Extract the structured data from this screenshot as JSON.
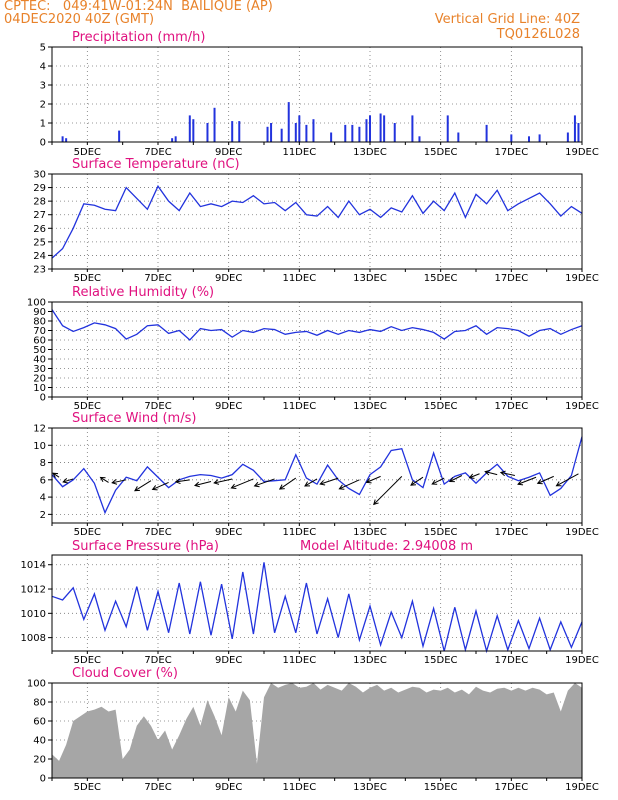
{
  "header": {
    "line1_left": "CPTEC:   049:41W-01:24N  BAILIQUE (AP)",
    "line2_left": "04DEC2020 40Z (GMT)",
    "line1_right": "Vertical Grid Line: 40Z",
    "line2_right": "TQ0126L028"
  },
  "colors": {
    "header": "#e8822a",
    "title": "#e0117f",
    "series": "#2233dd",
    "cloud": "#a6a6a6",
    "wind_arrow": "#000000"
  },
  "x_axis": {
    "start": "04DEC",
    "end": "19DEC",
    "tick_labels": [
      "5DEC",
      "7DEC",
      "9DEC",
      "11DEC",
      "13DEC",
      "15DEC",
      "17DEC",
      "19DEC"
    ],
    "tick_days": [
      5,
      7,
      9,
      11,
      13,
      15,
      17,
      19
    ],
    "range_days": [
      4.0,
      19.0
    ]
  },
  "chart_data": [
    {
      "type": "bar",
      "title": "Precipitation (mm/h)",
      "ylim": [
        0,
        5
      ],
      "yticks": [
        0,
        1,
        2,
        3,
        4,
        5
      ],
      "grid": true,
      "x": [
        4.3,
        4.4,
        5.9,
        7.4,
        7.5,
        7.9,
        8.0,
        8.4,
        8.6,
        9.1,
        9.3,
        10.1,
        10.2,
        10.5,
        10.7,
        10.9,
        11.0,
        11.2,
        11.4,
        11.9,
        12.3,
        12.5,
        12.7,
        12.9,
        13.0,
        13.3,
        13.4,
        13.7,
        14.2,
        14.4,
        15.2,
        15.5,
        16.3,
        17.0,
        17.5,
        17.8,
        18.6,
        18.8,
        18.9
      ],
      "values": [
        0.3,
        0.2,
        0.6,
        0.2,
        0.3,
        1.4,
        1.2,
        1.0,
        1.8,
        1.1,
        1.1,
        0.8,
        1.0,
        0.7,
        2.1,
        1.0,
        1.4,
        0.9,
        1.2,
        0.5,
        0.9,
        0.9,
        0.8,
        1.2,
        1.4,
        1.5,
        1.4,
        1.0,
        1.4,
        0.3,
        1.4,
        0.5,
        0.9,
        0.4,
        0.3,
        0.4,
        0.5,
        1.4,
        1.0
      ]
    },
    {
      "type": "line",
      "title": "Surface Temperature (nC)",
      "ylim": [
        23,
        30
      ],
      "yticks": [
        23,
        24,
        25,
        26,
        27,
        28,
        29,
        30
      ],
      "grid": true,
      "x": [
        4.0,
        4.3,
        4.6,
        4.9,
        5.2,
        5.5,
        5.8,
        6.1,
        6.4,
        6.7,
        7.0,
        7.3,
        7.6,
        7.9,
        8.2,
        8.5,
        8.8,
        9.1,
        9.4,
        9.7,
        10.0,
        10.3,
        10.6,
        10.9,
        11.2,
        11.5,
        11.8,
        12.1,
        12.4,
        12.7,
        13.0,
        13.3,
        13.6,
        13.9,
        14.2,
        14.5,
        14.8,
        15.1,
        15.4,
        15.7,
        16.0,
        16.3,
        16.6,
        16.9,
        17.2,
        17.5,
        17.8,
        18.1,
        18.4,
        18.7,
        19.0
      ],
      "values": [
        23.8,
        24.5,
        26.0,
        27.8,
        27.7,
        27.4,
        27.3,
        29.0,
        28.2,
        27.4,
        29.1,
        28.0,
        27.3,
        28.6,
        27.6,
        27.8,
        27.6,
        28.0,
        27.9,
        28.4,
        27.8,
        27.9,
        27.3,
        27.9,
        27.0,
        26.9,
        27.6,
        26.8,
        28.0,
        27.0,
        27.4,
        26.8,
        27.5,
        27.2,
        28.4,
        27.1,
        28.0,
        27.3,
        28.6,
        26.8,
        28.5,
        27.8,
        28.8,
        27.3,
        27.8,
        28.2,
        28.6,
        27.8,
        26.9,
        27.6,
        27.1
      ]
    },
    {
      "type": "line",
      "title": "Relative Humidity (%)",
      "ylim": [
        0,
        100
      ],
      "yticks": [
        0,
        10,
        20,
        30,
        40,
        50,
        60,
        70,
        80,
        90,
        100
      ],
      "grid": true,
      "x": [
        4.0,
        4.3,
        4.6,
        4.9,
        5.2,
        5.5,
        5.8,
        6.1,
        6.4,
        6.7,
        7.0,
        7.3,
        7.6,
        7.9,
        8.2,
        8.5,
        8.8,
        9.1,
        9.4,
        9.7,
        10.0,
        10.3,
        10.6,
        10.9,
        11.2,
        11.5,
        11.8,
        12.1,
        12.4,
        12.7,
        13.0,
        13.3,
        13.6,
        13.9,
        14.2,
        14.5,
        14.8,
        15.1,
        15.4,
        15.7,
        16.0,
        16.3,
        16.6,
        16.9,
        17.2,
        17.5,
        17.8,
        18.1,
        18.4,
        18.7,
        19.0
      ],
      "values": [
        92,
        75,
        69,
        73,
        78,
        76,
        72,
        61,
        66,
        75,
        76,
        67,
        70,
        60,
        72,
        70,
        71,
        63,
        70,
        68,
        72,
        71,
        66,
        68,
        69,
        65,
        70,
        66,
        70,
        68,
        71,
        69,
        74,
        70,
        73,
        71,
        68,
        61,
        69,
        70,
        75,
        66,
        73,
        72,
        70,
        64,
        70,
        72,
        66,
        71,
        75
      ]
    },
    {
      "type": "line",
      "title": "Surface Wind (m/s)",
      "ylim": [
        1,
        12
      ],
      "yticks": [
        2,
        4,
        6,
        8,
        10,
        12
      ],
      "grid": true,
      "x": [
        4.0,
        4.3,
        4.6,
        4.9,
        5.2,
        5.5,
        5.8,
        6.1,
        6.4,
        6.7,
        7.0,
        7.3,
        7.6,
        7.9,
        8.2,
        8.5,
        8.8,
        9.1,
        9.4,
        9.7,
        10.0,
        10.3,
        10.6,
        10.9,
        11.2,
        11.5,
        11.8,
        12.1,
        12.4,
        12.7,
        13.0,
        13.3,
        13.6,
        13.9,
        14.2,
        14.5,
        14.8,
        15.1,
        15.4,
        15.7,
        16.0,
        16.3,
        16.6,
        16.9,
        17.2,
        17.5,
        17.8,
        18.1,
        18.4,
        18.7,
        19.0
      ],
      "values": [
        6.6,
        5.2,
        6.0,
        7.3,
        5.6,
        2.2,
        4.8,
        6.3,
        5.9,
        7.5,
        6.3,
        5.1,
        6.0,
        6.4,
        6.6,
        6.5,
        6.2,
        6.6,
        7.8,
        7.1,
        5.8,
        5.9,
        6.0,
        8.9,
        6.2,
        5.5,
        7.7,
        6.0,
        5.0,
        4.3,
        6.6,
        7.5,
        9.4,
        9.6,
        6.0,
        5.1,
        9.1,
        5.5,
        6.4,
        6.8,
        5.6,
        6.8,
        7.8,
        6.4,
        5.9,
        6.3,
        6.8,
        4.2,
        5.0,
        6.5,
        11.0
      ],
      "arrows": [
        {
          "x": 4.2,
          "y": 6.3,
          "dx": -6,
          "dy": -4
        },
        {
          "x": 4.6,
          "y": 6.1,
          "dx": -10,
          "dy": 3
        },
        {
          "x": 5.6,
          "y": 5.7,
          "dx": -8,
          "dy": -5
        },
        {
          "x": 6.1,
          "y": 6.0,
          "dx": -14,
          "dy": 3
        },
        {
          "x": 6.8,
          "y": 5.9,
          "dx": -16,
          "dy": 10
        },
        {
          "x": 7.3,
          "y": 5.7,
          "dx": -16,
          "dy": 7
        },
        {
          "x": 7.9,
          "y": 6.0,
          "dx": -14,
          "dy": 2
        },
        {
          "x": 8.5,
          "y": 5.8,
          "dx": -16,
          "dy": 4
        },
        {
          "x": 9.1,
          "y": 6.1,
          "dx": -18,
          "dy": 4
        },
        {
          "x": 9.7,
          "y": 6.1,
          "dx": -22,
          "dy": 9
        },
        {
          "x": 10.3,
          "y": 6.1,
          "dx": -20,
          "dy": 7
        },
        {
          "x": 10.9,
          "y": 6.2,
          "dx": -16,
          "dy": 11
        },
        {
          "x": 11.5,
          "y": 6.1,
          "dx": -12,
          "dy": 7
        },
        {
          "x": 12.1,
          "y": 6.2,
          "dx": -18,
          "dy": 6
        },
        {
          "x": 12.7,
          "y": 6.0,
          "dx": -20,
          "dy": 9
        },
        {
          "x": 13.3,
          "y": 6.4,
          "dx": -14,
          "dy": 6
        },
        {
          "x": 13.9,
          "y": 6.4,
          "dx": -28,
          "dy": 28
        },
        {
          "x": 14.5,
          "y": 6.3,
          "dx": -12,
          "dy": 8
        },
        {
          "x": 15.1,
          "y": 6.2,
          "dx": -12,
          "dy": 6
        },
        {
          "x": 15.6,
          "y": 6.5,
          "dx": -12,
          "dy": 6
        },
        {
          "x": 16.1,
          "y": 6.7,
          "dx": -10,
          "dy": 4
        },
        {
          "x": 16.6,
          "y": 6.6,
          "dx": -12,
          "dy": -3
        },
        {
          "x": 17.1,
          "y": 6.5,
          "dx": -14,
          "dy": -3
        },
        {
          "x": 17.7,
          "y": 6.3,
          "dx": -18,
          "dy": 7
        },
        {
          "x": 18.2,
          "y": 6.4,
          "dx": -16,
          "dy": 7
        },
        {
          "x": 18.9,
          "y": 6.7,
          "dx": -22,
          "dy": 12
        }
      ]
    },
    {
      "type": "line",
      "title": "Surface Pressure (hPa)",
      "annotation": "Model Altitude: 2.94008 m",
      "ylim": [
        1006.9,
        1014.8
      ],
      "yticks": [
        1008,
        1010,
        1012,
        1014
      ],
      "grid": true,
      "x": [
        4.0,
        4.3,
        4.6,
        4.9,
        5.2,
        5.5,
        5.8,
        6.1,
        6.4,
        6.7,
        7.0,
        7.3,
        7.6,
        7.9,
        8.2,
        8.5,
        8.8,
        9.1,
        9.4,
        9.7,
        10.0,
        10.3,
        10.6,
        10.9,
        11.2,
        11.5,
        11.8,
        12.1,
        12.4,
        12.7,
        13.0,
        13.3,
        13.6,
        13.9,
        14.2,
        14.5,
        14.8,
        15.1,
        15.4,
        15.7,
        16.0,
        16.3,
        16.6,
        16.9,
        17.2,
        17.5,
        17.8,
        18.1,
        18.4,
        18.7,
        19.0
      ],
      "values": [
        1011.4,
        1011.1,
        1012.1,
        1009.5,
        1011.6,
        1008.6,
        1011.0,
        1008.9,
        1012.2,
        1008.6,
        1011.8,
        1008.4,
        1012.5,
        1008.3,
        1012.6,
        1008.2,
        1012.4,
        1007.9,
        1013.4,
        1008.3,
        1014.2,
        1008.4,
        1011.4,
        1008.4,
        1012.5,
        1008.3,
        1011.2,
        1008.0,
        1011.6,
        1007.8,
        1010.6,
        1007.4,
        1010.1,
        1008.0,
        1011.0,
        1007.3,
        1010.4,
        1006.9,
        1010.5,
        1007.0,
        1010.2,
        1006.9,
        1009.8,
        1007.0,
        1009.4,
        1007.1,
        1009.6,
        1007.0,
        1009.3,
        1007.2,
        1009.3
      ]
    },
    {
      "type": "area",
      "title": "Cloud Cover (%)",
      "ylim": [
        0,
        100
      ],
      "yticks": [
        0,
        20,
        40,
        60,
        80,
        100
      ],
      "grid": true,
      "x": [
        4.0,
        4.2,
        4.4,
        4.6,
        4.8,
        5.0,
        5.2,
        5.4,
        5.6,
        5.8,
        6.0,
        6.2,
        6.4,
        6.6,
        6.8,
        7.0,
        7.2,
        7.4,
        7.6,
        7.8,
        8.0,
        8.2,
        8.4,
        8.6,
        8.8,
        9.0,
        9.2,
        9.4,
        9.6,
        9.8,
        10.0,
        10.2,
        10.4,
        10.6,
        10.8,
        11.0,
        11.2,
        11.4,
        11.6,
        11.8,
        12.0,
        12.2,
        12.4,
        12.6,
        12.8,
        13.0,
        13.2,
        13.4,
        13.6,
        13.8,
        14.0,
        14.2,
        14.4,
        14.6,
        14.8,
        15.0,
        15.2,
        15.4,
        15.6,
        15.8,
        16.0,
        16.2,
        16.4,
        16.6,
        16.8,
        17.0,
        17.2,
        17.4,
        17.6,
        17.8,
        18.0,
        18.2,
        18.4,
        18.6,
        18.8,
        19.0
      ],
      "values": [
        25,
        18,
        35,
        60,
        65,
        70,
        72,
        75,
        70,
        72,
        20,
        30,
        55,
        65,
        55,
        40,
        50,
        30,
        45,
        62,
        75,
        55,
        82,
        65,
        45,
        85,
        70,
        92,
        82,
        15,
        85,
        100,
        95,
        98,
        100,
        95,
        96,
        100,
        93,
        98,
        95,
        92,
        100,
        96,
        90,
        95,
        98,
        92,
        95,
        90,
        93,
        96,
        95,
        90,
        93,
        92,
        95,
        90,
        93,
        88,
        96,
        92,
        90,
        94,
        95,
        92,
        95,
        92,
        95,
        93,
        88,
        90,
        70,
        92,
        100,
        95
      ]
    }
  ]
}
